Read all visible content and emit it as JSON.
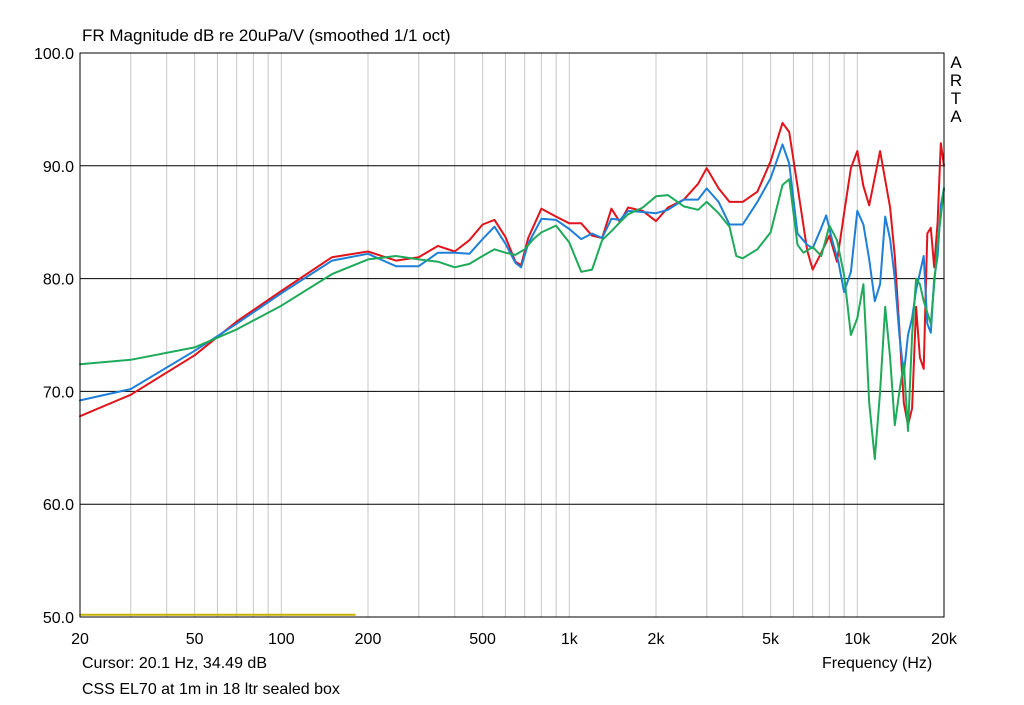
{
  "title": "FR Magnitude dB re 20uPa/V (smoothed 1/1 oct)",
  "brand": "ARTA",
  "cursor_readout": "Cursor: 20.1 Hz, 34.49 dB",
  "description": "CSS EL70 at 1m in 18 ltr sealed box",
  "colors": {
    "background": "#ffffff",
    "grid": "#c8c8c8",
    "frame": "#000000",
    "red": "#e0141b",
    "blue": "#1e7fd8",
    "green": "#1eaa5a",
    "cursor": "#c8b400"
  },
  "chart_data": {
    "type": "line",
    "title": "FR Magnitude dB re 20uPa/V (smoothed 1/1 oct)",
    "xlabel": "Frequency (Hz)",
    "ylabel": "",
    "xscale": "log",
    "xlim": [
      20,
      20000
    ],
    "ylim": [
      50,
      100
    ],
    "grid": true,
    "x_ticks": [
      20,
      50,
      100,
      200,
      500,
      1000,
      2000,
      5000,
      10000,
      20000
    ],
    "x_tick_labels": [
      "20",
      "50",
      "100",
      "200",
      "500",
      "1k",
      "2k",
      "5k",
      "10k",
      "20k"
    ],
    "y_ticks": [
      50,
      60,
      70,
      80,
      90,
      100
    ],
    "y_tick_labels": [
      "50.0",
      "60.0",
      "70.0",
      "80.0",
      "90.0",
      "100.0"
    ],
    "series": [
      {
        "color": "#e0141b",
        "x": [
          20,
          30,
          50,
          70,
          100,
          150,
          200,
          250,
          300,
          350,
          400,
          450,
          500,
          550,
          600,
          650,
          680,
          720,
          800,
          900,
          1000,
          1100,
          1200,
          1300,
          1400,
          1500,
          1600,
          1800,
          2000,
          2200,
          2500,
          2800,
          3000,
          3300,
          3600,
          4000,
          4500,
          5000,
          5500,
          5800,
          6200,
          6700,
          7000,
          7500,
          8000,
          8500,
          9000,
          9500,
          10000,
          10500,
          11000,
          12000,
          13000,
          13500,
          14000,
          14500,
          15000,
          15500,
          16000,
          16500,
          17000,
          17500,
          18000,
          18500,
          19000,
          19500,
          20000
        ],
        "values": [
          67.8,
          69.7,
          73.2,
          76.2,
          78.9,
          81.9,
          82.4,
          81.6,
          81.9,
          82.9,
          82.4,
          83.4,
          84.8,
          85.2,
          83.7,
          81.5,
          81.2,
          83.6,
          86.2,
          85.5,
          84.9,
          84.9,
          83.8,
          83.6,
          86.2,
          85.0,
          86.3,
          86.0,
          85.1,
          86.3,
          87.0,
          88.4,
          89.8,
          88.0,
          86.8,
          86.8,
          87.7,
          90.4,
          93.8,
          93.0,
          88.2,
          82.5,
          80.8,
          82.3,
          83.8,
          81.5,
          85.8,
          89.8,
          91.3,
          88.2,
          86.5,
          91.3,
          86.3,
          82.0,
          75.5,
          69.0,
          67.0,
          68.5,
          77.5,
          73.0,
          72.0,
          84.0,
          84.5,
          81.0,
          85.0,
          92.0,
          90.0
        ]
      },
      {
        "color": "#1e7fd8",
        "x": [
          20,
          30,
          50,
          70,
          100,
          150,
          200,
          250,
          300,
          350,
          400,
          450,
          500,
          550,
          600,
          650,
          680,
          720,
          800,
          900,
          1000,
          1100,
          1200,
          1300,
          1400,
          1500,
          1600,
          1800,
          2000,
          2200,
          2500,
          2800,
          3000,
          3300,
          3600,
          4000,
          4500,
          5000,
          5500,
          5800,
          6200,
          6700,
          7000,
          7500,
          7800,
          8200,
          8600,
          9000,
          9500,
          10000,
          10500,
          11000,
          11500,
          12000,
          12500,
          13000,
          13500,
          14000,
          14500,
          15000,
          15500,
          16000,
          17000,
          17500,
          18000,
          18500,
          19000,
          19500,
          20000
        ],
        "values": [
          69.2,
          70.2,
          73.6,
          76.0,
          78.7,
          81.6,
          82.2,
          81.1,
          81.1,
          82.3,
          82.3,
          82.2,
          83.5,
          84.6,
          83.1,
          81.4,
          81.0,
          83.1,
          85.3,
          85.2,
          84.4,
          83.5,
          84.0,
          83.6,
          85.3,
          85.2,
          86.0,
          85.9,
          85.8,
          86.1,
          87.0,
          87.0,
          88.0,
          86.8,
          84.8,
          84.8,
          86.8,
          88.9,
          91.9,
          90.2,
          84.0,
          83.0,
          82.7,
          84.5,
          85.6,
          83.3,
          81.5,
          78.8,
          80.6,
          86.0,
          84.8,
          81.7,
          78.0,
          79.5,
          85.5,
          83.5,
          80.0,
          75.0,
          71.5,
          75.0,
          76.5,
          79.0,
          82.0,
          76.0,
          75.2,
          80.0,
          82.0,
          86.5,
          88.0
        ]
      },
      {
        "color": "#1eaa5a",
        "x": [
          20,
          30,
          50,
          70,
          100,
          150,
          200,
          250,
          300,
          350,
          400,
          450,
          500,
          550,
          600,
          650,
          700,
          750,
          800,
          900,
          1000,
          1100,
          1200,
          1300,
          1400,
          1500,
          1600,
          1800,
          2000,
          2200,
          2500,
          2800,
          3000,
          3300,
          3600,
          3800,
          4000,
          4500,
          5000,
          5500,
          5800,
          6200,
          6500,
          7000,
          7500,
          8000,
          8500,
          9000,
          9500,
          10000,
          10500,
          11000,
          11500,
          12000,
          12500,
          13000,
          13500,
          14000,
          14500,
          15000,
          15500,
          16000,
          16500,
          17000,
          18000,
          19000,
          20000
        ],
        "values": [
          72.4,
          72.8,
          73.9,
          75.5,
          77.6,
          80.4,
          81.7,
          82.0,
          81.7,
          81.5,
          81.0,
          81.3,
          82.0,
          82.6,
          82.3,
          82.1,
          82.6,
          83.5,
          84.1,
          84.7,
          83.2,
          80.6,
          80.8,
          83.4,
          84.2,
          85.0,
          85.7,
          86.3,
          87.3,
          87.4,
          86.4,
          86.1,
          86.8,
          85.8,
          84.6,
          82.0,
          81.8,
          82.6,
          84.1,
          88.3,
          88.8,
          83.0,
          82.3,
          82.8,
          82.0,
          84.7,
          83.4,
          80.3,
          75.0,
          76.5,
          79.5,
          69.0,
          64.0,
          70.0,
          77.5,
          73.0,
          67.0,
          70.0,
          72.5,
          66.5,
          75.0,
          80.0,
          79.5,
          78.0,
          76.0,
          83.0,
          88.0
        ]
      },
      {
        "color": "#c8b400",
        "x": [
          20,
          180
        ],
        "values": [
          50.2,
          50.2
        ]
      }
    ]
  }
}
